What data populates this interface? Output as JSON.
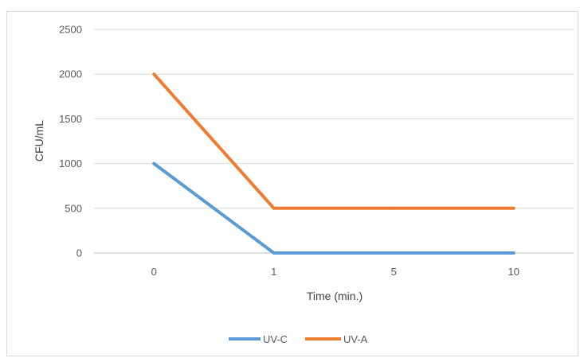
{
  "chart_data": {
    "type": "line",
    "categories": [
      "0",
      "1",
      "5",
      "10"
    ],
    "series": [
      {
        "name": "UV-C",
        "values": [
          1000,
          0,
          0,
          0
        ],
        "color": "#5b9bd5"
      },
      {
        "name": "UV-A",
        "values": [
          2000,
          500,
          500,
          500
        ],
        "color": "#ed7d31"
      }
    ],
    "xlabel": "Time (min.)",
    "ylabel": "CFU/mL",
    "ylim": [
      0,
      2500
    ],
    "yticks": [
      "0",
      "500",
      "1000",
      "1500",
      "2000",
      "2500"
    ],
    "grid": true,
    "legend": "bottom"
  }
}
